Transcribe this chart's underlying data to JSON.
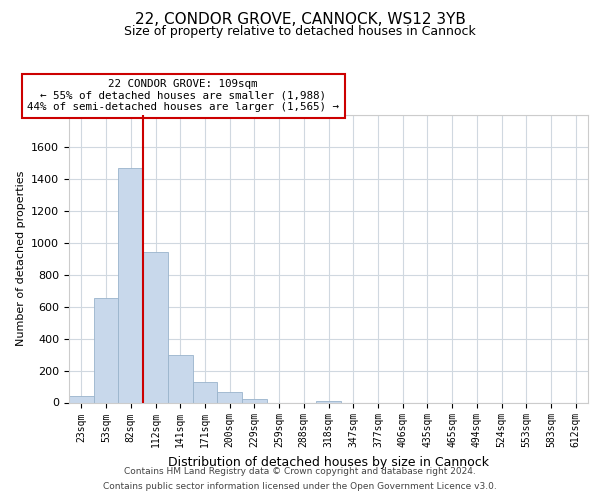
{
  "title_line1": "22, CONDOR GROVE, CANNOCK, WS12 3YB",
  "title_line2": "Size of property relative to detached houses in Cannock",
  "xlabel": "Distribution of detached houses by size in Cannock",
  "ylabel": "Number of detached properties",
  "bar_labels": [
    "23sqm",
    "53sqm",
    "82sqm",
    "112sqm",
    "141sqm",
    "171sqm",
    "200sqm",
    "229sqm",
    "259sqm",
    "288sqm",
    "318sqm",
    "347sqm",
    "377sqm",
    "406sqm",
    "435sqm",
    "465sqm",
    "494sqm",
    "524sqm",
    "553sqm",
    "583sqm",
    "612sqm"
  ],
  "bar_values": [
    40,
    655,
    1470,
    940,
    295,
    130,
    65,
    22,
    0,
    0,
    12,
    0,
    0,
    0,
    0,
    0,
    0,
    0,
    0,
    0,
    0
  ],
  "bar_color": "#c8d8eb",
  "bar_edge_color": "#9ab4cc",
  "vline_color": "#cc0000",
  "annotation_title": "22 CONDOR GROVE: 109sqm",
  "annotation_line1": "← 55% of detached houses are smaller (1,988)",
  "annotation_line2": "44% of semi-detached houses are larger (1,565) →",
  "annotation_box_color": "#ffffff",
  "annotation_box_edge": "#cc0000",
  "ylim": [
    0,
    1800
  ],
  "yticks": [
    0,
    200,
    400,
    600,
    800,
    1000,
    1200,
    1400,
    1600,
    1800
  ],
  "footer_line1": "Contains HM Land Registry data © Crown copyright and database right 2024.",
  "footer_line2": "Contains public sector information licensed under the Open Government Licence v3.0.",
  "background_color": "#ffffff",
  "grid_color": "#d0d8e0"
}
